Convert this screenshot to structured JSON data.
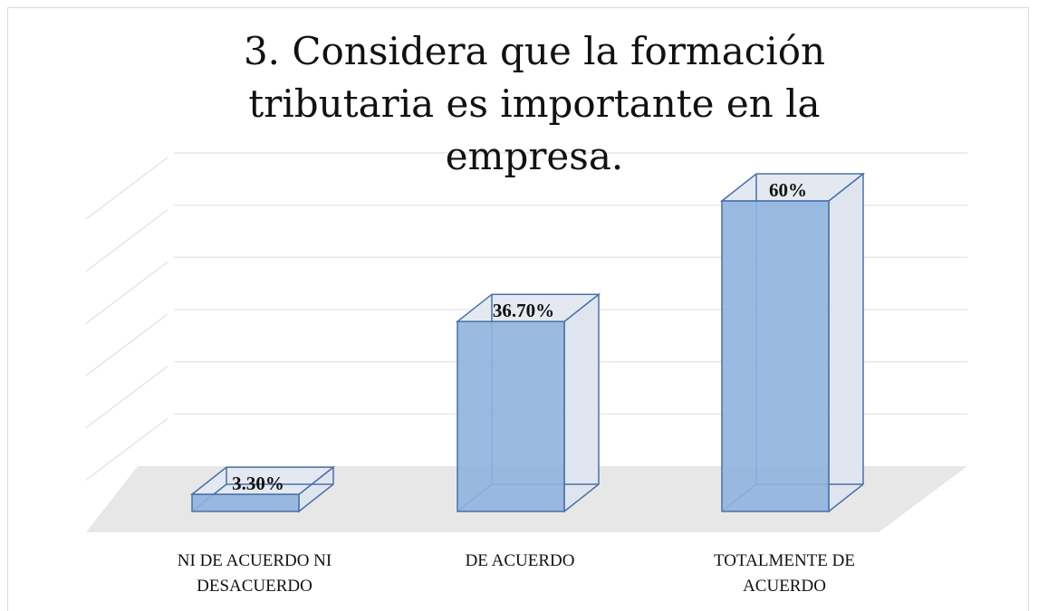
{
  "chart_data": {
    "type": "bar3d",
    "title": "3. Considera que la formación tributaria es importante en la empresa.",
    "categories": [
      "NI DE ACUERDO NI DESACUERDO",
      "DE ACUERDO",
      "TOTALMENTE DE ACUERDO"
    ],
    "values": [
      3.3,
      36.7,
      60
    ],
    "value_labels": [
      "3.30%",
      "36.70%",
      "60%"
    ],
    "color": "#8fb2de",
    "ylim": [
      0,
      60
    ],
    "yticks": [
      0,
      10,
      20,
      30,
      40,
      50,
      60
    ],
    "grid": true
  }
}
